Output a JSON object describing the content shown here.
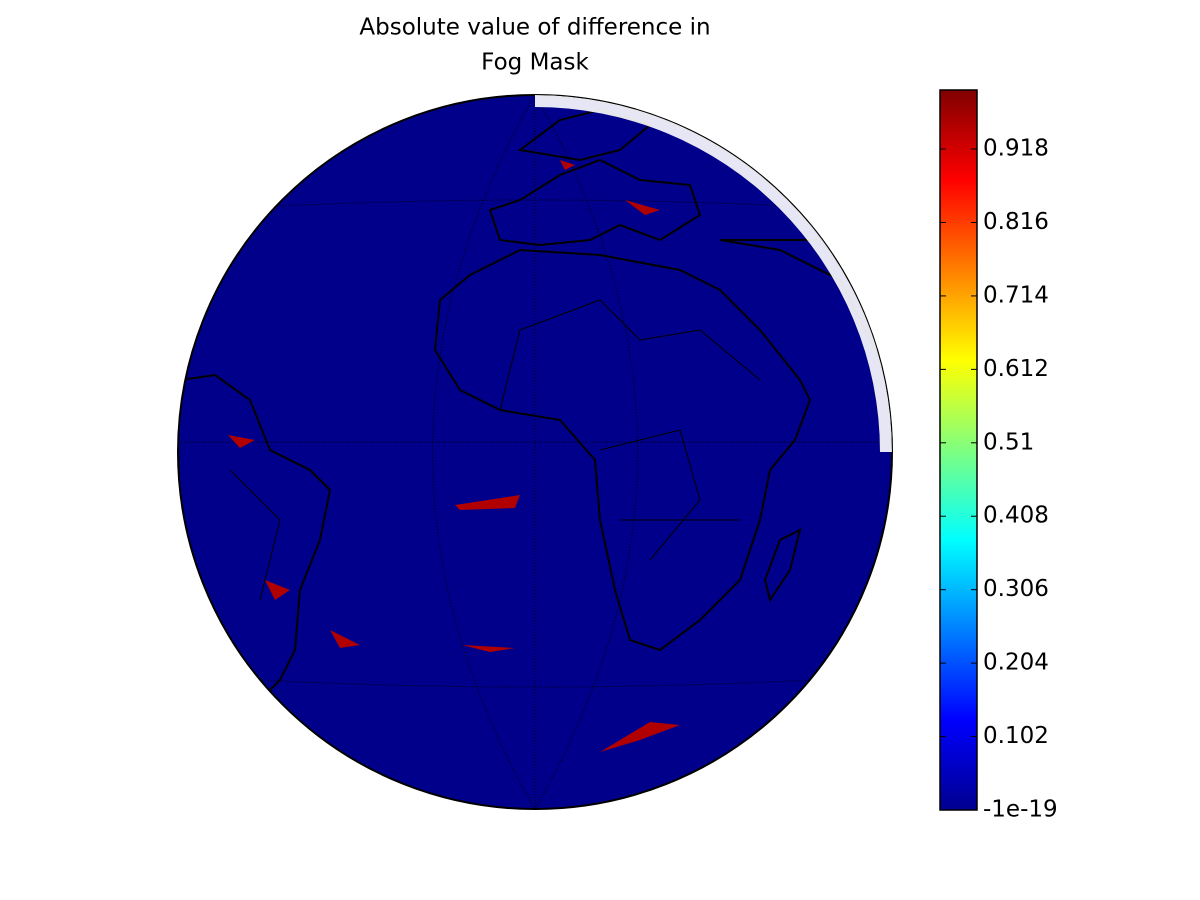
{
  "map": {
    "title_lines": [
      "Absolute value of difference in",
      "Fog Mask"
    ],
    "colorbar": {
      "colormap": "jet",
      "lim": [
        -1e-19,
        1.0
      ],
      "ticks": [
        -1e-19,
        0.102,
        0.204,
        0.306,
        0.408,
        0.51,
        0.612,
        0.714,
        0.816,
        0.918
      ]
    }
  }
}
